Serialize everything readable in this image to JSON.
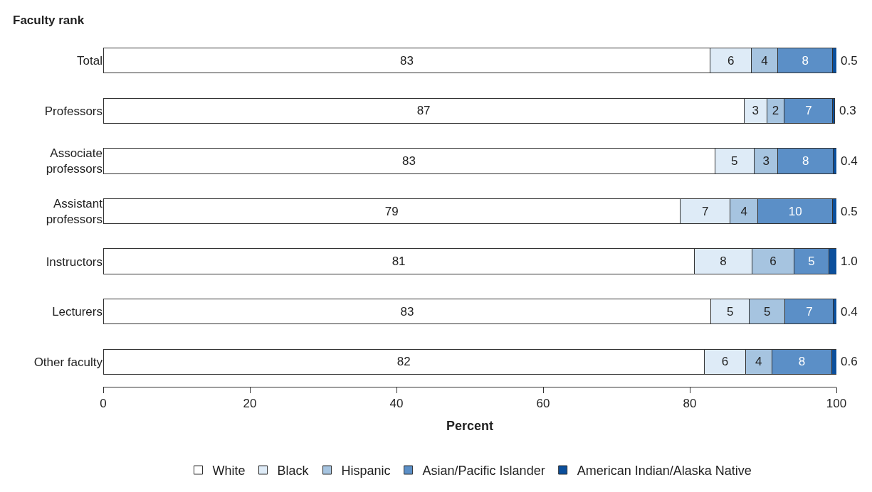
{
  "chart_data": {
    "type": "bar",
    "orientation": "horizontal",
    "stacked": true,
    "ylabel": "Faculty rank",
    "xlabel": "Percent",
    "categories": [
      "Total",
      "Professors",
      "Associate professors",
      "Assistant professors",
      "Instructors",
      "Lecturers",
      "Other faculty"
    ],
    "series": [
      {
        "name": "White",
        "color": "#ffffff",
        "values": [
          82.8,
          87.4,
          83.4,
          78.7,
          80.6,
          82.9,
          82.0
        ],
        "value_labels": [
          "83",
          "87",
          "83",
          "79",
          "81",
          "83",
          "82"
        ]
      },
      {
        "name": "Black",
        "color": "#deebf7",
        "values": [
          5.6,
          3.1,
          5.4,
          6.8,
          7.9,
          5.2,
          5.6
        ],
        "value_labels": [
          "6",
          "3",
          "5",
          "7",
          "8",
          "5",
          "6"
        ]
      },
      {
        "name": "Hispanic",
        "color": "#a6c4e0",
        "values": [
          3.6,
          2.4,
          3.2,
          3.8,
          5.7,
          4.9,
          3.6
        ],
        "value_labels": [
          "4",
          "2",
          "3",
          "4",
          "6",
          "5",
          "4"
        ]
      },
      {
        "name": "Asian/Pacific Islander",
        "color": "#5b8fc7",
        "values": [
          7.5,
          6.6,
          7.6,
          10.2,
          4.8,
          6.6,
          8.2
        ],
        "value_labels": [
          "8",
          "7",
          "8",
          "10",
          "5",
          "7",
          "8"
        ]
      },
      {
        "name": "American Indian/Alaska Native",
        "color": "#0b4f9c",
        "values": [
          0.5,
          0.3,
          0.4,
          0.5,
          1.0,
          0.4,
          0.6
        ],
        "value_labels": [
          "0.5",
          "0.3",
          "0.4",
          "0.5",
          "1.0",
          "0.4",
          "0.6"
        ]
      }
    ],
    "xlim": [
      0,
      100
    ],
    "xticks": [
      0,
      20,
      40,
      60,
      80,
      100
    ],
    "legend": "bottom"
  }
}
